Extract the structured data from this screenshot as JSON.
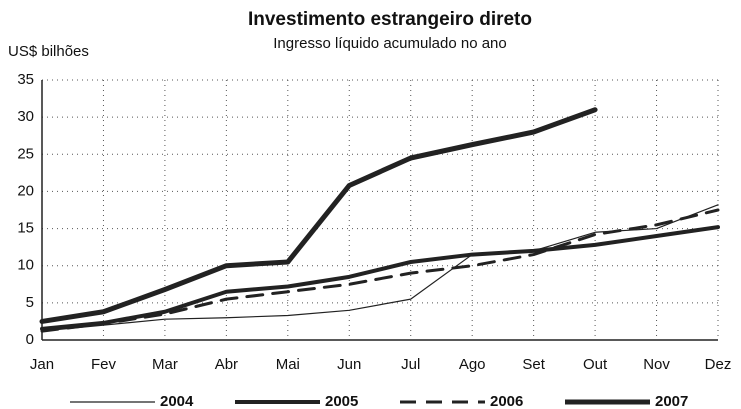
{
  "chart_data": {
    "type": "line",
    "title": "Investimento estrangeiro direto",
    "subtitle": "Ingresso líquido acumulado no ano",
    "y_label": "US$ bilhões",
    "categories": [
      "Jan",
      "Fev",
      "Mar",
      "Abr",
      "Mai",
      "Jun",
      "Jul",
      "Ago",
      "Set",
      "Out",
      "Nov",
      "Dez"
    ],
    "series": [
      {
        "name": "2004",
        "color": "#222222",
        "values": [
          1.2,
          2.0,
          2.8,
          3.0,
          3.3,
          4.0,
          5.5,
          11.5,
          12.0,
          14.5,
          15.0,
          18.2
        ]
      },
      {
        "name": "2005",
        "color": "#222222",
        "values": [
          1.5,
          2.3,
          3.8,
          6.5,
          7.2,
          8.5,
          10.5,
          11.5,
          12.0,
          12.8,
          14.0,
          15.2
        ]
      },
      {
        "name": "2006",
        "color": "#222222",
        "values": [
          1.2,
          2.2,
          3.5,
          5.5,
          6.5,
          7.5,
          9.0,
          10.0,
          11.5,
          14.2,
          15.5,
          17.5
        ]
      },
      {
        "name": "2007",
        "color": "#222222",
        "values": [
          2.5,
          3.8,
          6.8,
          10.0,
          10.5,
          20.8,
          24.5,
          26.3,
          28.0,
          31.0,
          null,
          null
        ]
      }
    ],
    "ylim": [
      0,
      35
    ],
    "yticks": [
      0,
      5,
      10,
      15,
      20,
      25,
      30,
      35
    ],
    "grid": true
  }
}
